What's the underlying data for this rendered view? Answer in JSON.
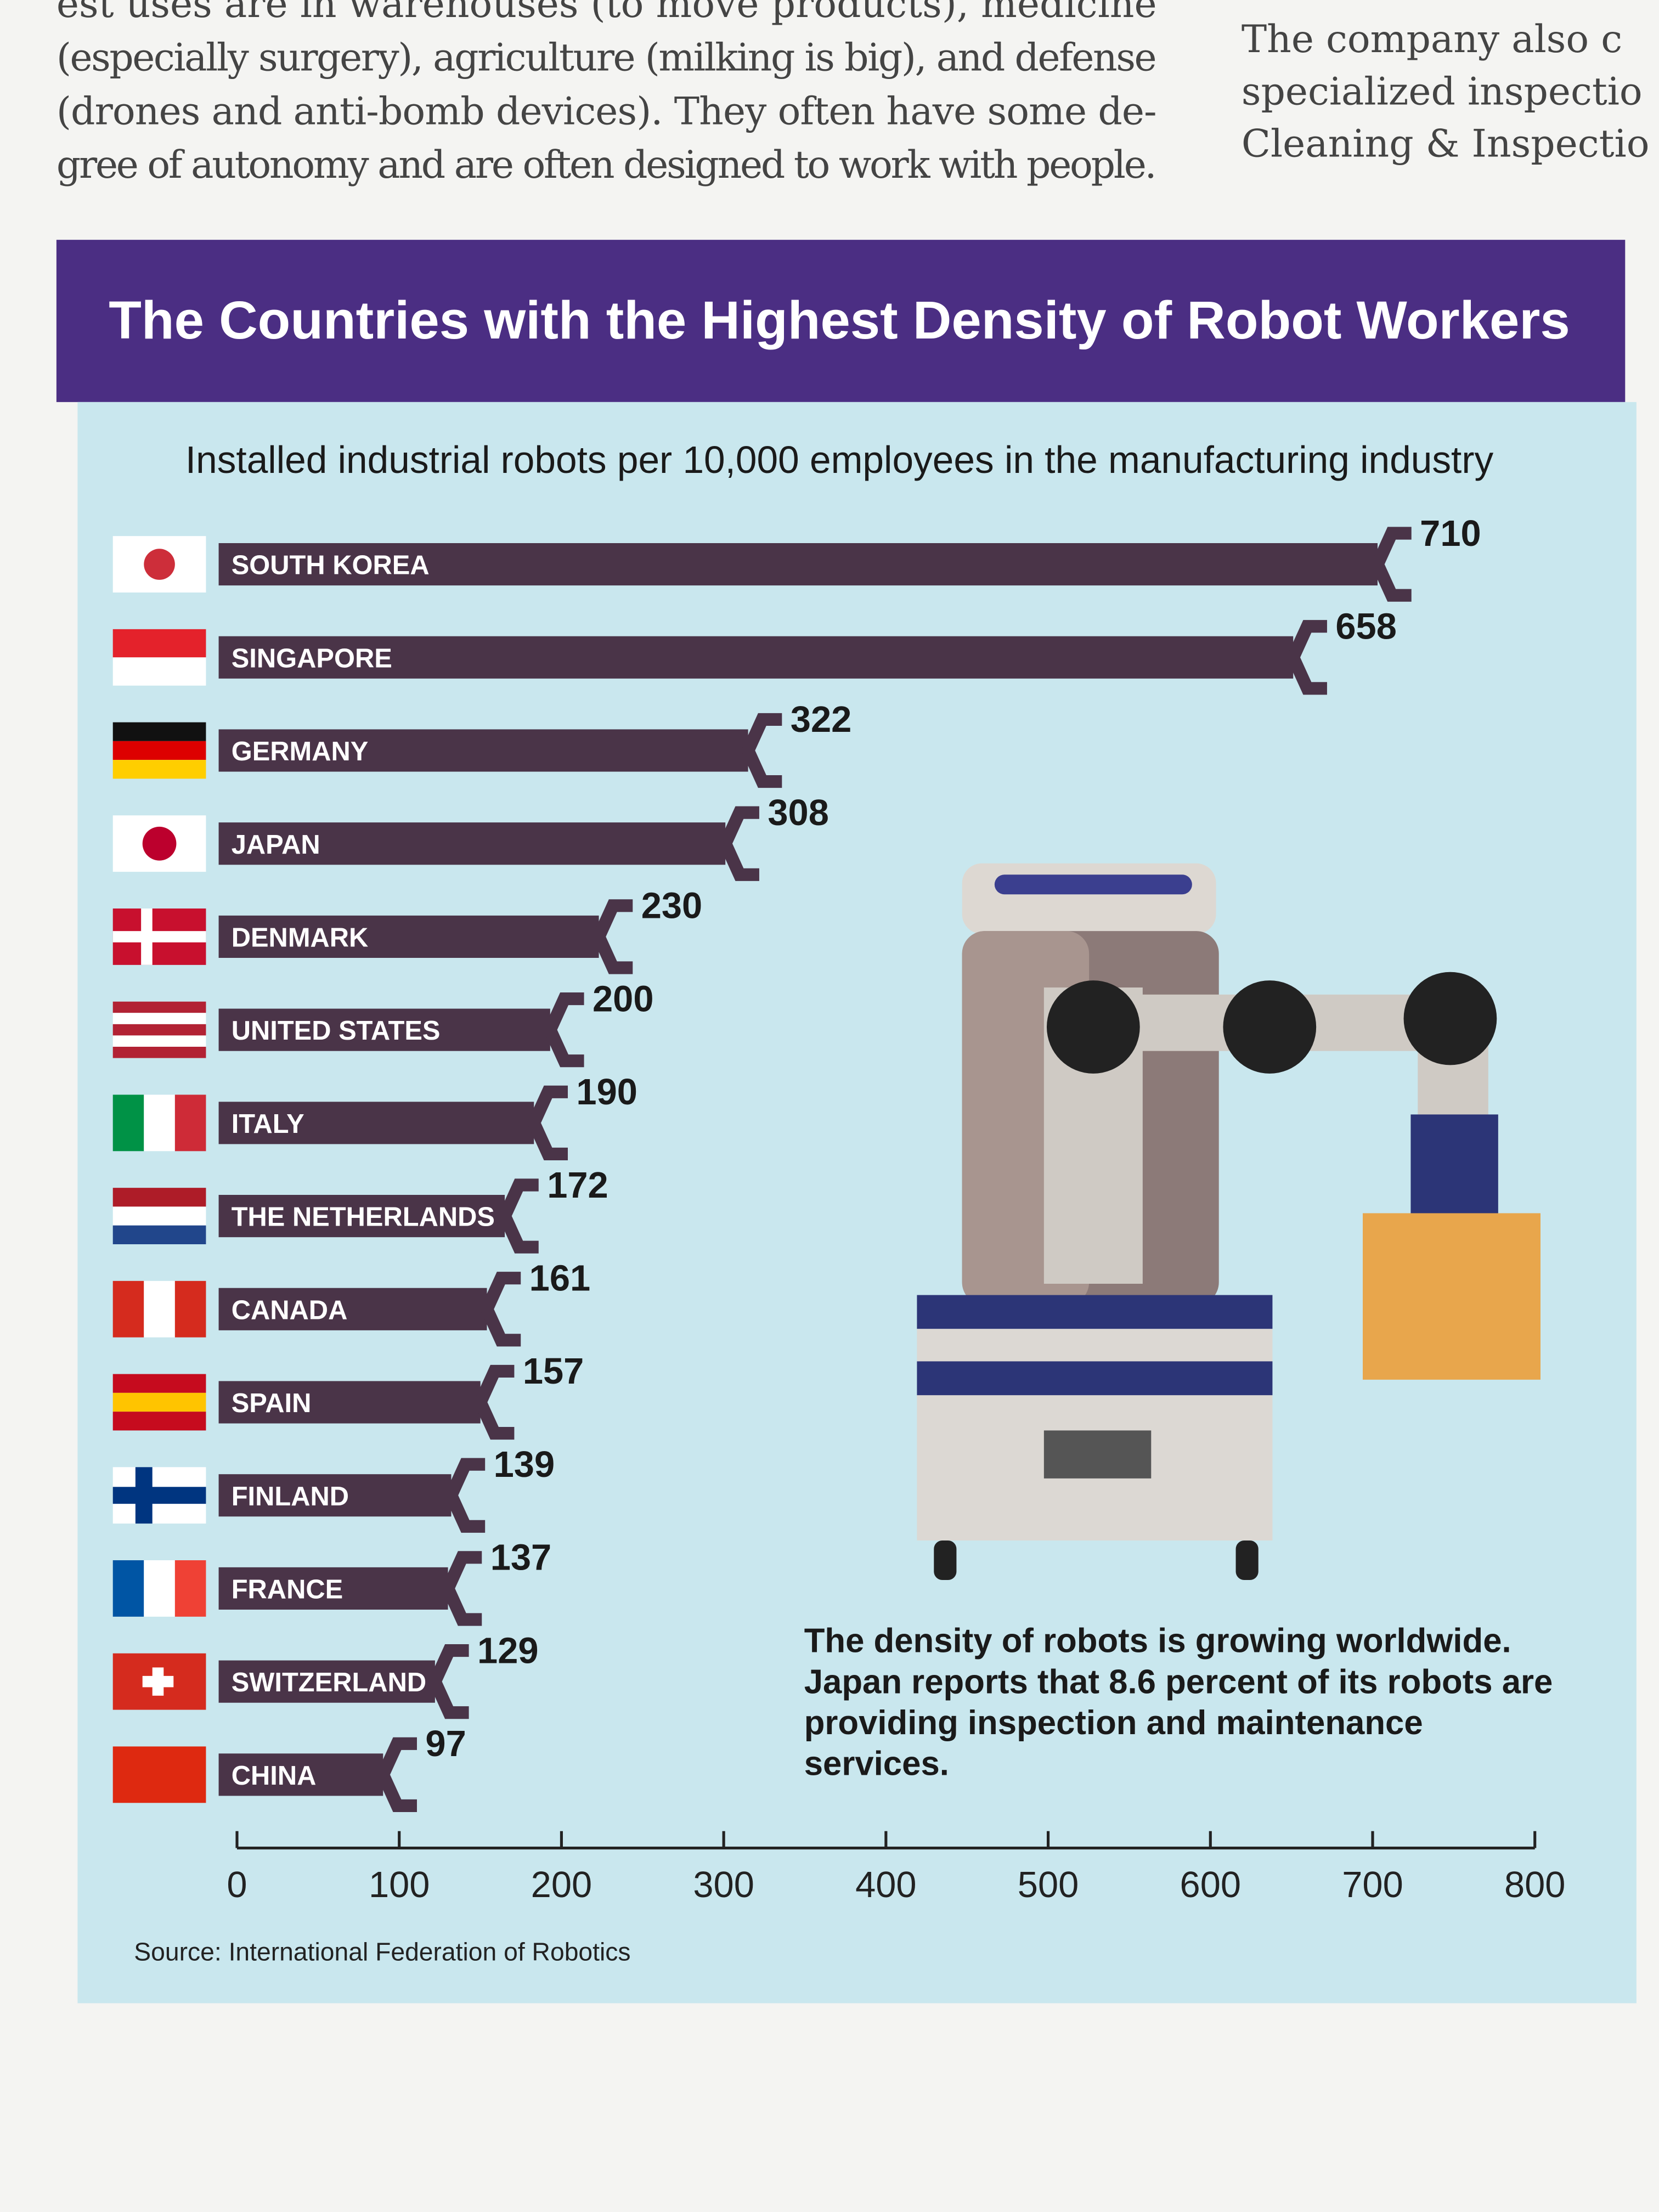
{
  "article": {
    "left": [
      "est uses are in warehouses (to move products), medicine",
      "(especially surgery), agriculture (milking is big), and defense",
      "(drones and anti-bomb devices). They often have some de-",
      "gree of autonomy and are often designed to work with people."
    ],
    "right": [
      "The company also c",
      "specialized inspectio",
      "Cleaning & Inspectio"
    ]
  },
  "chart_data": {
    "type": "bar",
    "orientation": "horizontal",
    "title": "The Countries with the Highest Density of Robot Workers",
    "subtitle": "Installed industrial robots per 10,000 employees in the manufacturing industry",
    "categories": [
      "SOUTH KOREA",
      "SINGAPORE",
      "GERMANY",
      "JAPAN",
      "DENMARK",
      "UNITED STATES",
      "ITALY",
      "THE NETHERLANDS",
      "CANADA",
      "SPAIN",
      "FINLAND",
      "FRANCE",
      "SWITZERLAND",
      "CHINA"
    ],
    "values": [
      710,
      658,
      322,
      308,
      230,
      200,
      190,
      172,
      161,
      157,
      139,
      137,
      129,
      97
    ],
    "color": "#4a3448",
    "xlim": [
      0,
      800
    ],
    "xticks": [
      0,
      100,
      200,
      300,
      400,
      500,
      600,
      700,
      800
    ],
    "annotation": "The density of robots is growing worldwide. Japan reports that 8.6 percent of its robots are providing inspection and maintenance services.",
    "source": "Source: International Federation of Robotics"
  }
}
